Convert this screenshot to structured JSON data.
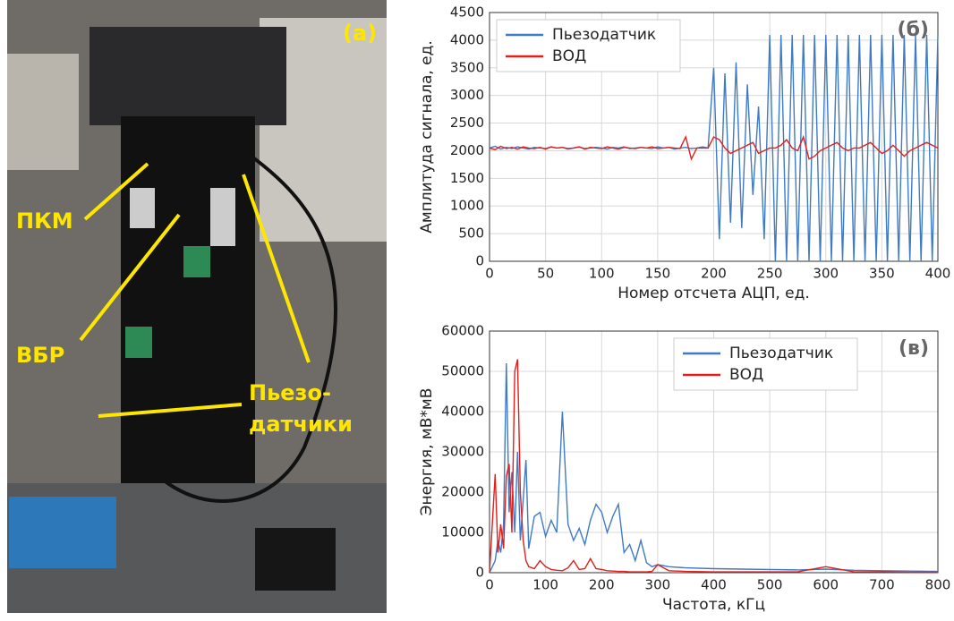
{
  "photo": {
    "panel_label": "(a)",
    "labels": [
      "ПКМ",
      "ВБР",
      "Пьезо-",
      "датчики"
    ]
  },
  "chart_data": [
    {
      "type": "line",
      "annotation": "(б)",
      "x_label": "Номер отсчета АЦП, ед.",
      "y_label": "Амплитуда сигнала, ед.",
      "xlim": [
        0,
        400
      ],
      "ylim": [
        0,
        4500
      ],
      "xticks": [
        0,
        50,
        100,
        150,
        200,
        250,
        300,
        350,
        400
      ],
      "yticks": [
        0,
        500,
        1000,
        1500,
        2000,
        2500,
        3000,
        3500,
        4000,
        4500
      ],
      "grid": true,
      "legend": "upper left",
      "x": [
        0,
        5,
        10,
        15,
        20,
        25,
        30,
        35,
        40,
        45,
        50,
        55,
        60,
        65,
        70,
        75,
        80,
        85,
        90,
        95,
        100,
        105,
        110,
        115,
        120,
        125,
        130,
        135,
        140,
        145,
        150,
        155,
        160,
        165,
        170,
        175,
        180,
        185,
        190,
        195,
        200,
        205,
        210,
        215,
        220,
        225,
        230,
        235,
        240,
        245,
        250,
        255,
        260,
        265,
        270,
        275,
        280,
        285,
        290,
        295,
        300,
        305,
        310,
        315,
        320,
        325,
        330,
        335,
        340,
        345,
        350,
        355,
        360,
        365,
        370,
        375,
        380,
        385,
        390,
        395,
        400
      ],
      "series": [
        {
          "name": "Пьезодатчик",
          "color": "#3f7bc4",
          "values": [
            2050,
            2080,
            2030,
            2060,
            2040,
            2070,
            2050,
            2030,
            2060,
            2050,
            2040,
            2070,
            2050,
            2060,
            2030,
            2050,
            2070,
            2040,
            2050,
            2060,
            2050,
            2030,
            2060,
            2050,
            2070,
            2040,
            2050,
            2060,
            2050,
            2040,
            2070,
            2050,
            2060,
            2030,
            2050,
            2060,
            2040,
            2050,
            2070,
            2050,
            3500,
            400,
            3400,
            700,
            3600,
            600,
            3200,
            1200,
            2800,
            400,
            4095,
            0,
            4095,
            0,
            4095,
            0,
            4095,
            0,
            4095,
            0,
            4095,
            0,
            4095,
            0,
            4095,
            0,
            4095,
            0,
            4095,
            0,
            4095,
            0,
            4095,
            0,
            4095,
            0,
            4095,
            0,
            4095,
            0,
            4095
          ]
        },
        {
          "name": "ВОД",
          "color": "#e0201b",
          "values": [
            2050,
            2020,
            2080,
            2040,
            2060,
            2030,
            2070,
            2050,
            2040,
            2060,
            2030,
            2070,
            2050,
            2060,
            2040,
            2050,
            2070,
            2030,
            2060,
            2050,
            2040,
            2070,
            2050,
            2030,
            2060,
            2050,
            2040,
            2060,
            2050,
            2070,
            2040,
            2050,
            2060,
            2050,
            2040,
            2250,
            1850,
            2050,
            2050,
            2050,
            2250,
            2200,
            2050,
            1950,
            2000,
            2050,
            2100,
            2150,
            1950,
            2000,
            2050,
            2050,
            2100,
            2200,
            2050,
            2000,
            2250,
            1850,
            1900,
            2000,
            2050,
            2100,
            2150,
            2050,
            2000,
            2050,
            2050,
            2100,
            2150,
            2050,
            1950,
            2000,
            2100,
            2000,
            1900,
            2000,
            2050,
            2100,
            2150,
            2100,
            2050
          ]
        }
      ]
    },
    {
      "type": "line",
      "annotation": "(в)",
      "x_label": "Частота, кГц",
      "y_label": "Энергия, мВ*мВ",
      "xlim": [
        0,
        800
      ],
      "ylim": [
        0,
        60000
      ],
      "xticks": [
        0,
        100,
        200,
        300,
        400,
        500,
        600,
        700,
        800
      ],
      "yticks": [
        0,
        10000,
        20000,
        30000,
        40000,
        50000,
        60000
      ],
      "grid": true,
      "legend": "upper right",
      "x": [
        0,
        10,
        15,
        20,
        25,
        30,
        35,
        40,
        45,
        50,
        55,
        60,
        65,
        70,
        80,
        90,
        100,
        110,
        120,
        130,
        140,
        150,
        160,
        170,
        180,
        190,
        200,
        210,
        220,
        230,
        240,
        250,
        260,
        270,
        280,
        290,
        300,
        320,
        350,
        400,
        450,
        500,
        550,
        600,
        650,
        700,
        750,
        800
      ],
      "series": [
        {
          "name": "Пьезодатчик",
          "color": "#3f7bc4",
          "values": [
            0,
            3000,
            8000,
            5000,
            12000,
            52000,
            15000,
            25000,
            10000,
            30000,
            8000,
            18000,
            28000,
            6000,
            14000,
            15000,
            9000,
            13000,
            10000,
            40000,
            12000,
            8000,
            11000,
            7000,
            13000,
            17000,
            15000,
            10000,
            14000,
            17000,
            5000,
            7000,
            3000,
            8000,
            2500,
            1500,
            2000,
            1500,
            1200,
            1000,
            900,
            800,
            700,
            900,
            600,
            500,
            400,
            300
          ]
        },
        {
          "name": "ВОД",
          "color": "#e0201b",
          "values": [
            0,
            24500,
            5000,
            12000,
            6000,
            24000,
            27000,
            10000,
            50000,
            53000,
            20000,
            8000,
            3000,
            1500,
            1000,
            3000,
            1500,
            800,
            600,
            500,
            1200,
            3000,
            800,
            1000,
            3500,
            1000,
            800,
            500,
            400,
            300,
            300,
            200,
            200,
            200,
            200,
            300,
            2000,
            500,
            300,
            200,
            200,
            200,
            200,
            1500,
            200,
            200,
            100,
            100
          ]
        }
      ]
    }
  ]
}
